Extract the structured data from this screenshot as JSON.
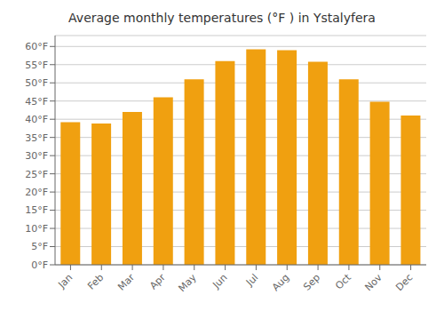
{
  "chart_data": {
    "type": "bar",
    "title": "Average monthly temperatures (°F ) in Ystalyfera",
    "categories": [
      "Jan",
      "Feb",
      "Mar",
      "Apr",
      "May",
      "Jun",
      "Jul",
      "Aug",
      "Sep",
      "Oct",
      "Nov",
      "Dec"
    ],
    "values": [
      39.2,
      38.8,
      42.0,
      46.0,
      51.0,
      56.0,
      59.2,
      59.0,
      55.8,
      51.0,
      44.8,
      41.0
    ],
    "color": "#F0A010",
    "ylim": [
      0,
      63
    ],
    "yticks": [
      {
        "value": 0,
        "label": "0°F"
      },
      {
        "value": 5,
        "label": "5°F"
      },
      {
        "value": 10,
        "label": "10°F"
      },
      {
        "value": 15,
        "label": "15°F"
      },
      {
        "value": 20,
        "label": "20°F"
      },
      {
        "value": 25,
        "label": "25°F"
      },
      {
        "value": 30,
        "label": "30°F"
      },
      {
        "value": 35,
        "label": "35°F"
      },
      {
        "value": 40,
        "label": "40°F"
      },
      {
        "value": 45,
        "label": "45°F"
      },
      {
        "value": 50,
        "label": "50°F"
      },
      {
        "value": 55,
        "label": "55°F"
      },
      {
        "value": 60,
        "label": "60°F"
      }
    ],
    "grid": true
  }
}
